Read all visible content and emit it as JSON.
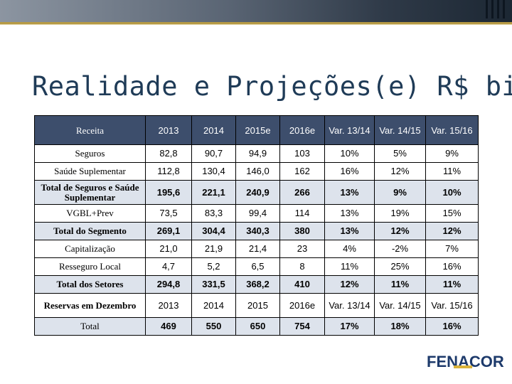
{
  "title": "Realidade e Projeções(e) R$ bi",
  "logo_text": "FENACOR",
  "colors": {
    "header_bg": "#3d4e6c",
    "title_color": "#1f3b57",
    "accent_gold": "#b69a45"
  },
  "table": {
    "header": [
      "Receita",
      "2013",
      "2014",
      "2015e",
      "2016e",
      "Var. 13/14",
      "Var. 14/15",
      "Var. 15/16"
    ],
    "rows": [
      {
        "label": "Seguros",
        "cells": [
          "82,8",
          "90,7",
          "94,9",
          "103",
          "10%",
          "5%",
          "9%"
        ]
      },
      {
        "label": "Saúde Suplementar",
        "cells": [
          "112,8",
          "130,4",
          "146,0",
          "162",
          "16%",
          "12%",
          "11%"
        ]
      },
      {
        "label": "Total de Seguros e Saúde Suplementar",
        "cells": [
          "195,6",
          "221,1",
          "240,9",
          "266",
          "13%",
          "9%",
          "10%"
        ]
      },
      {
        "label": "VGBL+Prev",
        "cells": [
          "73,5",
          "83,3",
          "99,4",
          "114",
          "13%",
          "19%",
          "15%"
        ]
      },
      {
        "label": "Total do Segmento",
        "cells": [
          "269,1",
          "304,4",
          "340,3",
          "380",
          "13%",
          "12%",
          "12%"
        ]
      },
      {
        "label": "Capitalização",
        "cells": [
          "21,0",
          "21,9",
          "21,4",
          "23",
          "4%",
          "-2%",
          "7%"
        ]
      },
      {
        "label": "Resseguro Local",
        "cells": [
          "4,7",
          "5,2",
          "6,5",
          "8",
          "11%",
          "25%",
          "16%"
        ]
      },
      {
        "label": "Total dos Setores",
        "cells": [
          "294,8",
          "331,5",
          "368,2",
          "410",
          "12%",
          "11%",
          "11%"
        ]
      }
    ],
    "reserve_header": [
      "Reservas em Dezembro",
      "2013",
      "2014",
      "2015",
      "2016e",
      "Var. 13/14",
      "Var. 14/15",
      "Var. 15/16"
    ],
    "total_row": {
      "label": "Total",
      "cells": [
        "469",
        "550",
        "650",
        "754",
        "17%",
        "18%",
        "16%"
      ]
    }
  }
}
